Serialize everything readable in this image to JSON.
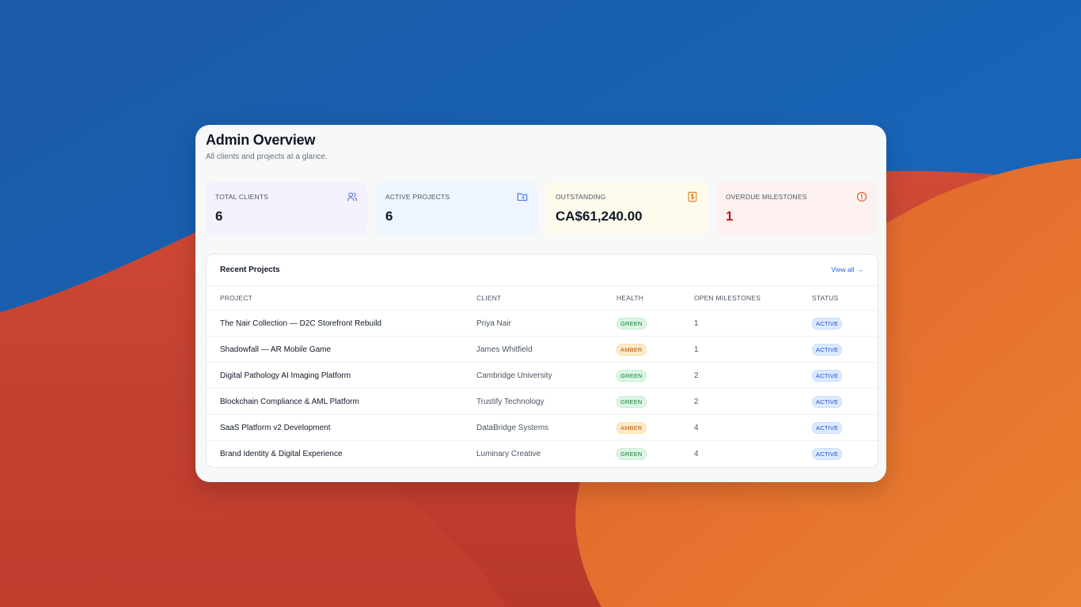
{
  "header": {
    "title": "Admin Overview",
    "subtitle": "All clients and projects at a glance."
  },
  "stats": [
    {
      "label": "TOTAL CLIENTS",
      "value": "6",
      "icon": "users-icon"
    },
    {
      "label": "ACTIVE PROJECTS",
      "value": "6",
      "icon": "folder-icon"
    },
    {
      "label": "OUTSTANDING",
      "value": "CA$61,240.00",
      "icon": "invoice-dollar-icon"
    },
    {
      "label": "OVERDUE MILESTONES",
      "value": "1",
      "icon": "alert-circle-icon"
    }
  ],
  "recent_projects": {
    "title": "Recent Projects",
    "view_all": "View all",
    "columns": [
      "PROJECT",
      "CLIENT",
      "HEALTH",
      "OPEN MILESTONES",
      "STATUS"
    ],
    "rows": [
      {
        "project": "The Nair Collection — D2C Storefront Rebuild",
        "client": "Priya Nair",
        "health": "GREEN",
        "milestones": "1",
        "status": "ACTIVE"
      },
      {
        "project": "Shadowfall — AR Mobile Game",
        "client": "James Whitfield",
        "health": "AMBER",
        "milestones": "1",
        "status": "ACTIVE"
      },
      {
        "project": "Digital Pathology AI Imaging Platform",
        "client": "Cambridge University",
        "health": "GREEN",
        "milestones": "2",
        "status": "ACTIVE"
      },
      {
        "project": "Blockchain Compliance & AML Platform",
        "client": "Trustify Technology",
        "health": "GREEN",
        "milestones": "2",
        "status": "ACTIVE"
      },
      {
        "project": "SaaS Platform v2 Development",
        "client": "DataBridge Systems",
        "health": "AMBER",
        "milestones": "4",
        "status": "ACTIVE"
      },
      {
        "project": "Brand Identity & Digital Experience",
        "client": "Luminary Creative",
        "health": "GREEN",
        "milestones": "4",
        "status": "ACTIVE"
      }
    ]
  },
  "colors": {
    "accent": "#2563eb",
    "health_green": "#15803d",
    "health_amber": "#b45309",
    "status_active": "#1d4ed8",
    "overdue": "#b91c1c"
  }
}
